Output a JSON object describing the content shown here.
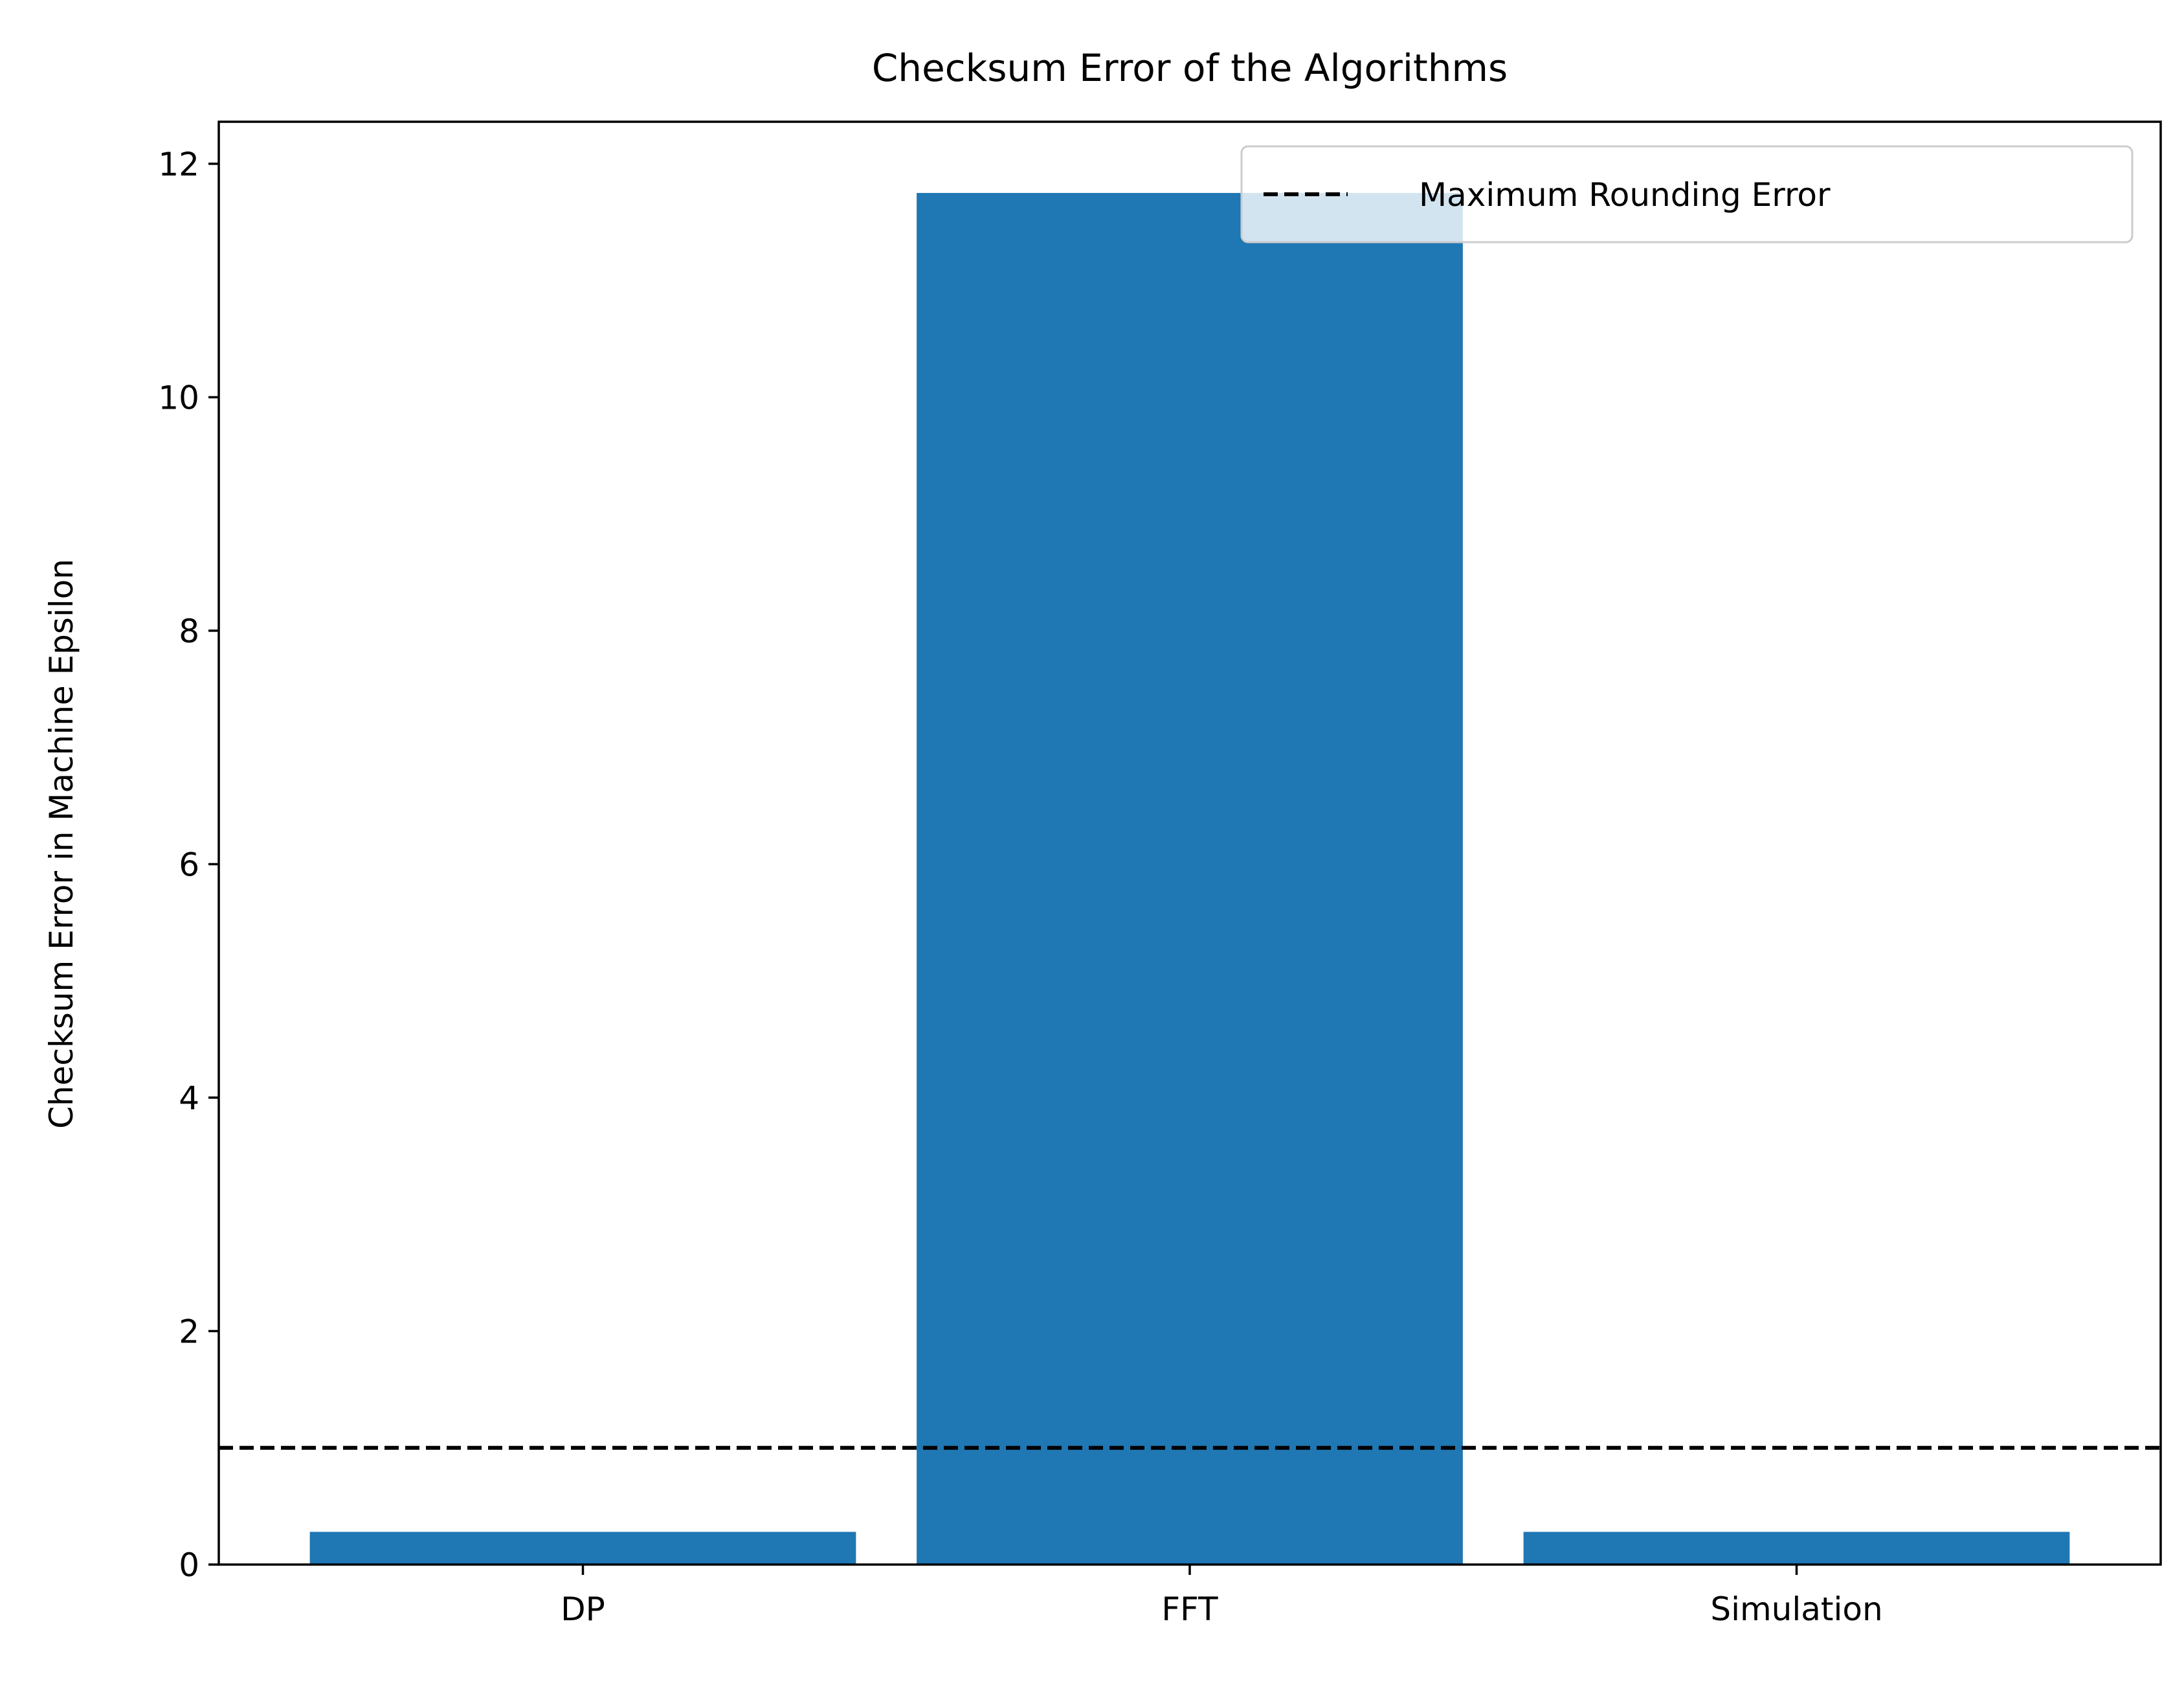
{
  "chart_data": {
    "type": "bar",
    "title": "Checksum Error of the Algorithms",
    "xlabel": "",
    "ylabel": "Checksum Error in Machine Epsilon",
    "categories": [
      "DP",
      "FFT",
      "Simulation"
    ],
    "values": [
      0.28,
      11.75,
      0.28
    ],
    "ylim": [
      0,
      12.36
    ],
    "yticks": [
      0,
      2,
      4,
      6,
      8,
      10,
      12
    ],
    "bar_color": "#1f77b4",
    "reference_line": {
      "label": "Maximum Rounding Error",
      "y": 1.0,
      "color": "#000000",
      "style": "dashed"
    },
    "legend": {
      "placement": "upper-right",
      "entries": [
        "Maximum Rounding Error"
      ]
    },
    "grid": false
  }
}
